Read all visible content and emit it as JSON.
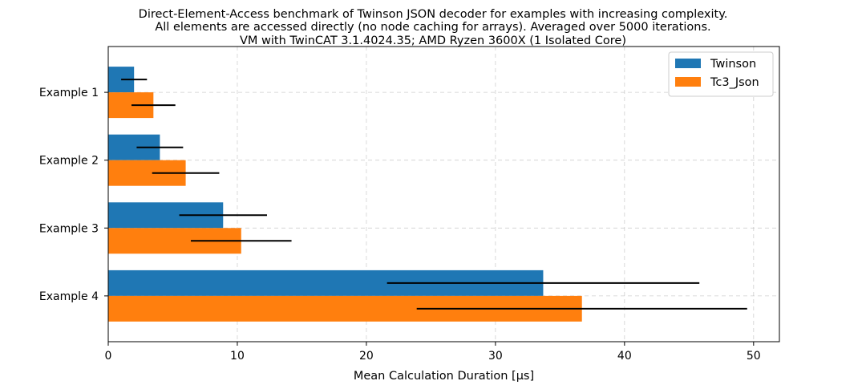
{
  "chart_data": {
    "type": "bar",
    "orientation": "horizontal",
    "title_lines": [
      "Direct-Element-Access benchmark of Twinson JSON decoder for examples with increasing complexity.",
      "All elements are accessed directly (no node caching for arrays). Averaged over 5000 iterations.",
      "VM with TwinCAT 3.1.4024.35; AMD Ryzen 3600X (1 Isolated Core)"
    ],
    "xlabel": "Mean Calculation Duration [μs]",
    "ylabel": "",
    "xlim": [
      0,
      52
    ],
    "xticks": [
      0,
      10,
      20,
      30,
      40,
      50
    ],
    "categories": [
      "Example 1",
      "Example 2",
      "Example 3",
      "Example 4"
    ],
    "series": [
      {
        "name": "Twinson",
        "color": "#1f77b4",
        "values": [
          2.0,
          4.0,
          8.9,
          33.7
        ],
        "errors": [
          1.0,
          1.8,
          3.4,
          12.1
        ]
      },
      {
        "name": "Tc3_Json",
        "color": "#ff7f0e",
        "values": [
          3.5,
          6.0,
          10.3,
          36.7
        ],
        "errors": [
          1.7,
          2.6,
          3.9,
          12.8
        ]
      }
    ],
    "grid": true,
    "legend_position": "top-right"
  }
}
